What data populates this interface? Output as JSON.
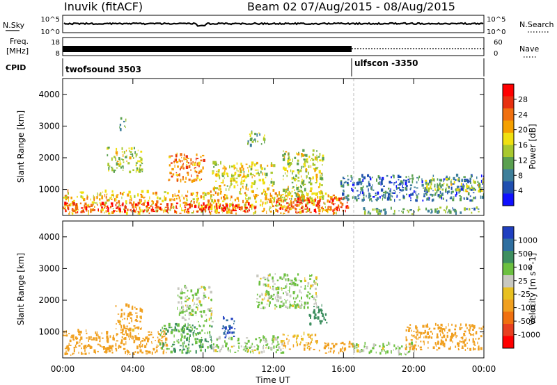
{
  "header": {
    "station": "Inuvik (fitACF)",
    "beam_dates": "Beam 02 07/Aug/2015 - 08/Aug/2015"
  },
  "strips": {
    "nsky_label": "N.Sky",
    "nsky_left_ticks": [
      "10^5",
      "10^0"
    ],
    "nsky_right_ticks": [
      "10^5",
      "10^0"
    ],
    "nsearch_label": "N.Search",
    "freq_label_line1": "Freq.",
    "freq_label_line2": "[MHz]",
    "freq_ticks": [
      "18",
      "8"
    ],
    "nave_ticks": [
      "60",
      "0"
    ],
    "nave_label": "Nave",
    "cpid_label": "CPID",
    "cpid_programs": [
      {
        "name": "twofsound 3503",
        "start_hour": 0
      },
      {
        "name": "ulfscon -3350",
        "start_hour": 16.6
      }
    ]
  },
  "chart_data": [
    {
      "type": "heatmap",
      "title": "",
      "xlabel": "Time UT",
      "ylabel": "Slant Range [km]",
      "xlim": [
        0,
        24
      ],
      "ylim": [
        180,
        4500
      ],
      "x_tick_hours": [
        0,
        4,
        8,
        12,
        16,
        20,
        24
      ],
      "x_tick_labels": [
        "00:00",
        "04:00",
        "08:00",
        "12:00",
        "16:00",
        "20:00",
        "00:00"
      ],
      "y_ticks": [
        1000,
        2000,
        3000,
        4000
      ],
      "y_tick_labels": [
        "1000",
        "2000",
        "3000",
        "4000"
      ],
      "colorbar_label": "Power [dB]",
      "colorbar_ticks": [
        "4",
        "8",
        "12",
        "16",
        "20",
        "24",
        "28"
      ],
      "colorbar_colors": [
        "#1010ff",
        "#1f4fb0",
        "#3e7f9a",
        "#5aa050",
        "#a8c82e",
        "#f0e010",
        "#f5a000",
        "#f07010",
        "#e83010",
        "#ff0000"
      ],
      "cpid_change_hour": 16.6,
      "regions": [
        {
          "t0": 0.0,
          "t1": 15.8,
          "r0": 200,
          "r1": 900,
          "value_db": 18
        },
        {
          "t0": 0.0,
          "t1": 6.5,
          "r0": 250,
          "r1": 550,
          "value_db": 26
        },
        {
          "t0": 6.8,
          "t1": 11.0,
          "r0": 250,
          "r1": 500,
          "value_db": 28
        },
        {
          "t0": 12.0,
          "t1": 16.2,
          "r0": 250,
          "r1": 700,
          "value_db": 26
        },
        {
          "t0": 8.0,
          "t1": 9.2,
          "r0": 320,
          "r1": 420,
          "value_db": 30
        },
        {
          "t0": 2.5,
          "t1": 4.5,
          "r0": 1500,
          "r1": 2300,
          "value_db": 14
        },
        {
          "t0": 6.0,
          "t1": 8.0,
          "r0": 1200,
          "r1": 2100,
          "value_db": 22
        },
        {
          "t0": 8.5,
          "t1": 12.0,
          "r0": 900,
          "r1": 1800,
          "value_db": 16
        },
        {
          "t0": 12.5,
          "t1": 14.8,
          "r0": 600,
          "r1": 2200,
          "value_db": 14
        },
        {
          "t0": 15.8,
          "t1": 24.0,
          "r0": 600,
          "r1": 1400,
          "value_db": 7
        },
        {
          "t0": 17.0,
          "t1": 24.0,
          "r0": 200,
          "r1": 400,
          "value_db": 10
        },
        {
          "t0": 20.5,
          "t1": 24.0,
          "r0": 900,
          "r1": 1300,
          "value_db": 14
        },
        {
          "t0": 3.2,
          "t1": 3.6,
          "r0": 2800,
          "r1": 3200,
          "value_db": 10
        },
        {
          "t0": 10.5,
          "t1": 11.5,
          "r0": 2300,
          "r1": 2800,
          "value_db": 12
        }
      ]
    },
    {
      "type": "heatmap",
      "title": "",
      "xlabel": "Time UT",
      "ylabel": "Slant Range [km]",
      "xlim": [
        0,
        24
      ],
      "ylim": [
        180,
        4500
      ],
      "x_tick_hours": [
        0,
        4,
        8,
        12,
        16,
        20,
        24
      ],
      "x_tick_labels": [
        "00:00",
        "04:00",
        "08:00",
        "12:00",
        "16:00",
        "20:00",
        "00:00"
      ],
      "y_ticks": [
        1000,
        2000,
        3000,
        4000
      ],
      "y_tick_labels": [
        "1000",
        "2000",
        "3000",
        "4000"
      ],
      "colorbar_label": "Velocity [m s^-1]",
      "colorbar_ticks": [
        "1000",
        "500",
        "100",
        "25",
        "-25",
        "-100",
        "-500",
        "-1000"
      ],
      "colorbar_colors": [
        "#1f3fc0",
        "#2f6fa0",
        "#3e8f60",
        "#6cc040",
        "#c8c8c0",
        "#e8c020",
        "#f0a020",
        "#f07010",
        "#e84020",
        "#ff0000"
      ],
      "cpid_change_hour": 16.6,
      "regions": [
        {
          "t0": 0.0,
          "t1": 6.0,
          "r0": 250,
          "r1": 1000,
          "value_ms": -150
        },
        {
          "t0": 5.5,
          "t1": 8.5,
          "r0": 300,
          "r1": 1200,
          "value_ms": 60
        },
        {
          "t0": 8.5,
          "t1": 12.5,
          "r0": 300,
          "r1": 800,
          "value_ms": 0
        },
        {
          "t0": 12.5,
          "t1": 14.5,
          "r0": 400,
          "r1": 900,
          "value_ms": -60
        },
        {
          "t0": 14.5,
          "t1": 16.5,
          "r0": 300,
          "r1": 650,
          "value_ms": -150
        },
        {
          "t0": 16.5,
          "t1": 20.0,
          "r0": 250,
          "r1": 600,
          "value_ms": 0
        },
        {
          "t0": 19.5,
          "t1": 24.0,
          "r0": 400,
          "r1": 1200,
          "value_ms": -200
        },
        {
          "t0": 6.5,
          "t1": 8.5,
          "r0": 1300,
          "r1": 2400,
          "value_ms": 0
        },
        {
          "t0": 11.0,
          "t1": 14.5,
          "r0": 1700,
          "r1": 2800,
          "value_ms": 0
        },
        {
          "t0": 9.0,
          "t1": 9.8,
          "r0": 800,
          "r1": 1400,
          "value_ms": 800
        },
        {
          "t0": 14.0,
          "t1": 15.0,
          "r0": 1200,
          "r1": 1800,
          "value_ms": 150
        },
        {
          "t0": 3.0,
          "t1": 4.5,
          "r0": 1000,
          "r1": 1800,
          "value_ms": -100
        }
      ]
    }
  ]
}
